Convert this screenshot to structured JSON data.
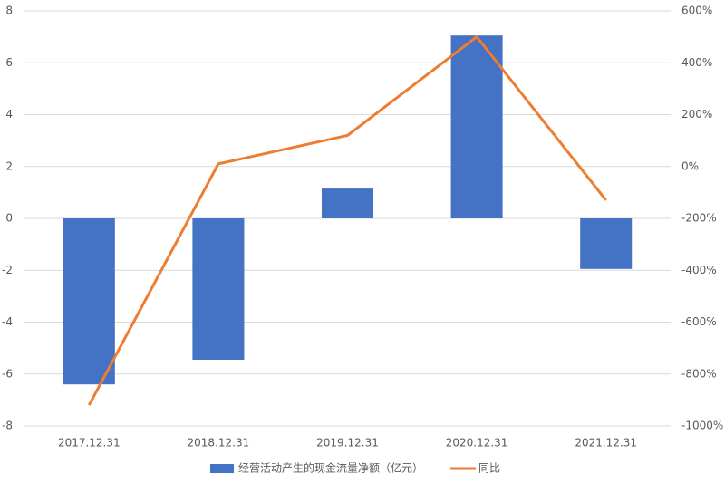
{
  "chart_data": {
    "type": "combo",
    "categories": [
      "2017.12.31",
      "2018.12.31",
      "2019.12.31",
      "2020.12.31",
      "2021.12.31"
    ],
    "series": [
      {
        "name": "经营活动产生的现金流量净额（亿元）",
        "type": "bar",
        "color": "#4472c4",
        "values": [
          -6.4,
          -5.45,
          1.15,
          7.05,
          -1.95
        ]
      },
      {
        "name": "同比",
        "type": "line",
        "axis": "y2",
        "color": "#ed7d31",
        "values": [
          -920,
          10,
          120,
          500,
          -130
        ]
      }
    ],
    "ylim": [
      -8,
      8
    ],
    "yticks": [
      -8,
      -6,
      -4,
      -2,
      0,
      2,
      4,
      6,
      8
    ],
    "y2lim": [
      -1000,
      600
    ],
    "y2ticks": [
      {
        "value": -1000,
        "label": "-1000%"
      },
      {
        "value": -800,
        "label": "-800%"
      },
      {
        "value": -600,
        "label": "-600%"
      },
      {
        "value": -400,
        "label": "-400%"
      },
      {
        "value": -200,
        "label": "-200%"
      },
      {
        "value": 0,
        "label": "0%"
      },
      {
        "value": 200,
        "label": "200%"
      },
      {
        "value": 400,
        "label": "400%"
      },
      {
        "value": 600,
        "label": "600%"
      }
    ],
    "grid": true,
    "legend": "bottom"
  }
}
